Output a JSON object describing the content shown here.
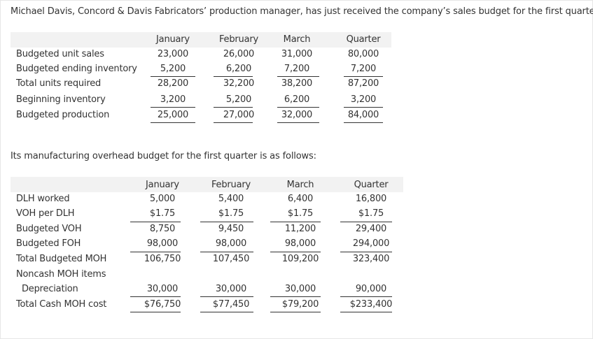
{
  "intro_text": "Michael Davis, Concord & Davis Fabricators’ production manager, has just received the company’s sales budget for the first quarter:",
  "intro2_text": "Its manufacturing overhead budget for the first quarter is as follows:",
  "production_table": {
    "headers": [
      "January",
      "February",
      "March",
      "Quarter"
    ],
    "rows": [
      {
        "label": "Budgeted unit sales",
        "values": [
          "23,000",
          "26,000",
          "31,000",
          "80,000"
        ]
      },
      {
        "label": "Budgeted ending inventory",
        "values": [
          "5,200",
          "6,200",
          "7,200",
          "7,200"
        ]
      },
      {
        "label": "Total units required",
        "values": [
          "28,200",
          "32,200",
          "38,200",
          "87,200"
        ]
      },
      {
        "label": "Beginning inventory",
        "values": [
          "3,200",
          "5,200",
          "6,200",
          "3,200"
        ]
      },
      {
        "label": "Budgeted production",
        "values": [
          "25,000",
          "27,000",
          "32,000",
          "84,000"
        ]
      }
    ]
  },
  "overhead_table": {
    "headers": [
      "January",
      "February",
      "March",
      "Quarter"
    ],
    "rows": [
      {
        "label": "DLH worked",
        "values": [
          "5,000",
          "5,400",
          "6,400",
          "16,800"
        ]
      },
      {
        "label": "VOH per DLH",
        "values": [
          "$1.75",
          "$1.75",
          "$1.75",
          "$1.75"
        ]
      },
      {
        "label": "Budgeted VOH",
        "values": [
          "8,750",
          "9,450",
          "11,200",
          "29,400"
        ]
      },
      {
        "label": "Budgeted FOH",
        "values": [
          "98,000",
          "98,000",
          "98,000",
          "294,000"
        ]
      },
      {
        "label": "Total Budgeted MOH",
        "values": [
          "106,750",
          "107,450",
          "109,200",
          "323,400"
        ]
      },
      {
        "label": "Noncash MOH items",
        "values": [
          "",
          "",
          "",
          ""
        ]
      },
      {
        "label": "Depreciation",
        "values": [
          "30,000",
          "30,000",
          "30,000",
          "90,000"
        ]
      },
      {
        "label": "Total Cash MOH cost",
        "values": [
          "$76,750",
          "$77,450",
          "$79,200",
          "$233,400"
        ]
      }
    ]
  }
}
